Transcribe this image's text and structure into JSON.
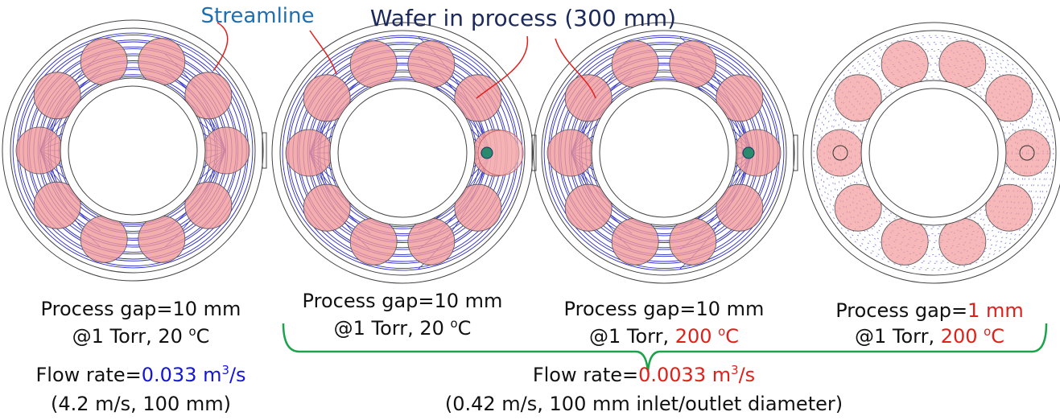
{
  "labels": {
    "streamline": "Streamline",
    "wafer": "Wafer in process (300 mm)"
  },
  "captions": [
    {
      "lines": [
        [
          {
            "text": "Process gap=10 mm"
          }
        ],
        [
          {
            "text": "@1 Torr, 20 "
          },
          {
            "text": "o",
            "sup": true
          },
          {
            "text": "C"
          }
        ]
      ]
    },
    {
      "lines": [
        [
          {
            "text": "Process gap=10 mm"
          }
        ],
        [
          {
            "text": "@1 Torr, 20 "
          },
          {
            "text": "o",
            "sup": true
          },
          {
            "text": "C"
          }
        ]
      ]
    },
    {
      "lines": [
        [
          {
            "text": "Process gap=10 mm"
          }
        ],
        [
          {
            "text": "@1 Torr, "
          },
          {
            "text": "200 ",
            "color": "#e0201b"
          },
          {
            "text": "o",
            "sup": true,
            "color": "#e0201b"
          },
          {
            "text": "C",
            "color": "#e0201b"
          }
        ]
      ]
    },
    {
      "lines": [
        [
          {
            "text": "Process gap="
          },
          {
            "text": "1 mm",
            "color": "#e0201b"
          }
        ],
        [
          {
            "text": "@1 Torr, "
          },
          {
            "text": "200 ",
            "color": "#e0201b"
          },
          {
            "text": "o",
            "sup": true,
            "color": "#e0201b"
          },
          {
            "text": "C",
            "color": "#e0201b"
          }
        ]
      ]
    }
  ],
  "flow": [
    {
      "lines": [
        [
          {
            "text": "Flow rate="
          },
          {
            "text": "0.033 m",
            "color": "#1515d6"
          },
          {
            "text": "3",
            "sup": true,
            "color": "#1515d6"
          },
          {
            "text": "/s",
            "color": "#1515d6"
          }
        ],
        [
          {
            "text": "(4.2 m/s, 100 mm)"
          }
        ]
      ]
    },
    {
      "lines": [
        [
          {
            "text": "Flow rate="
          },
          {
            "text": "0.0033 m",
            "color": "#e0201b"
          },
          {
            "text": "3",
            "sup": true,
            "color": "#e0201b"
          },
          {
            "text": "/s",
            "color": "#e0201b"
          }
        ],
        [
          {
            "text": "(0.42 m/s, 100 mm inlet/outlet diameter)"
          }
        ]
      ]
    }
  ]
}
